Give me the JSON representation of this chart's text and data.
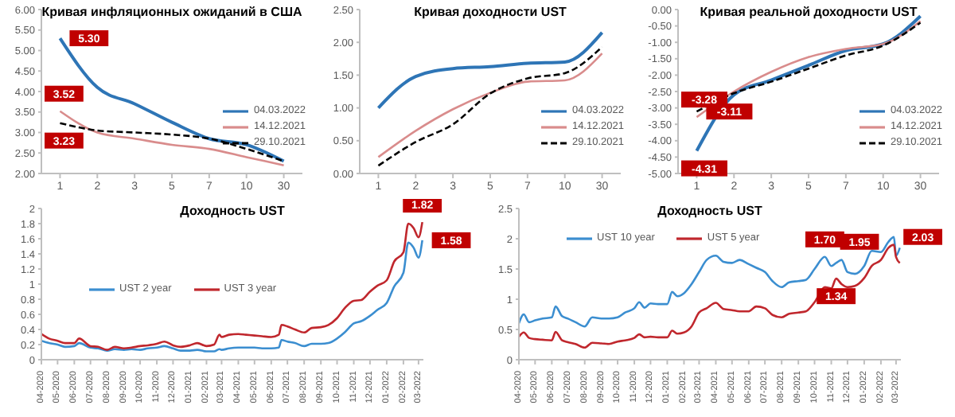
{
  "chart_data": [
    {
      "type": "line",
      "title": "Кривая инфляционных ожиданий в США",
      "categories": [
        "1",
        "2",
        "3",
        "5",
        "7",
        "10",
        "30"
      ],
      "legend": "bottom right",
      "ylim": [
        2,
        6
      ],
      "yticks": [
        {
          "value": 2,
          "label": "2.00"
        },
        {
          "value": 2.5,
          "label": "2.50"
        },
        {
          "value": 3,
          "label": "3.00"
        },
        {
          "value": 3.5,
          "label": "3.50"
        },
        {
          "value": 4,
          "label": "4.00"
        },
        {
          "value": 4.5,
          "label": "4.50"
        },
        {
          "value": 5,
          "label": "5.00"
        },
        {
          "value": 5.5,
          "label": "5.50"
        },
        {
          "value": 6,
          "label": "6.00"
        }
      ],
      "series": [
        {
          "name": "04.03.2022",
          "color": "#2e75b6",
          "values": [
            5.3,
            4.1,
            3.7,
            3.25,
            2.85,
            2.7,
            2.3
          ]
        },
        {
          "name": "14.12.2021",
          "color": "#d98c8c",
          "values": [
            3.52,
            3.0,
            2.85,
            2.7,
            2.6,
            2.4,
            2.2
          ]
        },
        {
          "name": "29.10.2021",
          "color": "#000000",
          "line_style": "dashed",
          "values": [
            3.23,
            3.05,
            3.0,
            2.95,
            2.85,
            2.6,
            2.3
          ]
        }
      ],
      "annotations": [
        {
          "text": "3.52",
          "x": "1",
          "y": 3.52
        },
        {
          "text": "5.30",
          "x": "1",
          "y": 5.3
        },
        {
          "text": "3.23",
          "x": "1",
          "y": 3.23
        }
      ]
    },
    {
      "type": "line",
      "title": "Кривая доходности UST",
      "categories": [
        "1",
        "2",
        "3",
        "5",
        "7",
        "10",
        "30"
      ],
      "legend": "bottom right",
      "ylim": [
        0,
        2.5
      ],
      "yticks": [
        {
          "value": 0,
          "label": "0.00"
        },
        {
          "value": 0.5,
          "label": "0.50"
        },
        {
          "value": 1,
          "label": "1.00"
        },
        {
          "value": 1.5,
          "label": "1.50"
        },
        {
          "value": 2,
          "label": "2.00"
        },
        {
          "value": 2.5,
          "label": "2.50"
        }
      ],
      "series": [
        {
          "name": "04.03.2022",
          "color": "#2e75b6",
          "values": [
            1.0,
            1.48,
            1.6,
            1.63,
            1.68,
            1.7,
            2.15
          ]
        },
        {
          "name": "14.12.2021",
          "color": "#d98c8c",
          "values": [
            0.25,
            0.65,
            0.98,
            1.23,
            1.4,
            1.42,
            1.83
          ]
        },
        {
          "name": "29.10.2021",
          "color": "#000000",
          "line_style": "dashed",
          "values": [
            0.12,
            0.48,
            0.75,
            1.22,
            1.45,
            1.53,
            1.93
          ]
        }
      ]
    },
    {
      "type": "line",
      "title": "Кривая реальной доходности UST",
      "categories": [
        "1",
        "2",
        "3",
        "5",
        "7",
        "10",
        "30"
      ],
      "legend": "bottom right",
      "ylim": [
        -5,
        0
      ],
      "yticks": [
        {
          "value": -5,
          "label": "-5.00"
        },
        {
          "value": -4.5,
          "label": "-4.50"
        },
        {
          "value": -4,
          "label": "-4.00"
        },
        {
          "value": -3.5,
          "label": "-3.50"
        },
        {
          "value": -3,
          "label": "-3.00"
        },
        {
          "value": -2.5,
          "label": "-2.50"
        },
        {
          "value": -2,
          "label": "-2.00"
        },
        {
          "value": -1.5,
          "label": "-1.50"
        },
        {
          "value": -1,
          "label": "-1.00"
        },
        {
          "value": -0.5,
          "label": "-0.50"
        },
        {
          "value": 0,
          "label": "0.00"
        }
      ],
      "series": [
        {
          "name": "04.03.2022",
          "color": "#2e75b6",
          "values": [
            -4.31,
            -2.6,
            -2.15,
            -1.7,
            -1.25,
            -1.05,
            -0.2
          ]
        },
        {
          "name": "14.12.2021",
          "color": "#d98c8c",
          "values": [
            -3.28,
            -2.5,
            -1.9,
            -1.45,
            -1.2,
            -1.05,
            -0.35
          ]
        },
        {
          "name": "29.10.2021",
          "color": "#000000",
          "line_style": "dashed",
          "values": [
            -3.11,
            -2.55,
            -2.2,
            -1.8,
            -1.4,
            -1.1,
            -0.4
          ]
        }
      ],
      "annotations": [
        {
          "text": "-3.28",
          "x": "1",
          "y": -3.28
        },
        {
          "text": "-3.11",
          "x": "1",
          "y": -3.11
        },
        {
          "text": "-4.31",
          "x": "1",
          "y": -4.31
        }
      ]
    },
    {
      "type": "line",
      "title": "Доходность UST",
      "legend": "left",
      "x": [
        "2020-04-01",
        "2020-04-15",
        "2020-05-01",
        "2020-05-15",
        "2020-06-01",
        "2020-06-10",
        "2020-07-01",
        "2020-07-15",
        "2020-08-01",
        "2020-08-15",
        "2020-09-01",
        "2020-09-15",
        "2020-10-01",
        "2020-10-15",
        "2020-11-01",
        "2020-11-15",
        "2020-12-01",
        "2020-12-15",
        "2021-01-01",
        "2021-01-15",
        "2021-02-01",
        "2021-02-15",
        "2021-02-25",
        "2021-03-01",
        "2021-03-15",
        "2021-04-01",
        "2021-04-15",
        "2021-05-01",
        "2021-05-15",
        "2021-06-01",
        "2021-06-15",
        "2021-06-20",
        "2021-07-01",
        "2021-07-15",
        "2021-08-01",
        "2021-08-15",
        "2021-09-01",
        "2021-09-15",
        "2021-10-01",
        "2021-10-15",
        "2021-11-01",
        "2021-11-15",
        "2021-12-01",
        "2021-12-15",
        "2022-01-01",
        "2022-01-15",
        "2022-02-01",
        "2022-02-10",
        "2022-02-20",
        "2022-03-01",
        "2022-03-08"
      ],
      "xlim": [
        "2020-04-01",
        "2022-03-10"
      ],
      "xticks": [
        {
          "value": "2020-04",
          "label": "04-2020"
        },
        {
          "value": "2020-05",
          "label": "05-2020"
        },
        {
          "value": "2020-06",
          "label": "06-2020"
        },
        {
          "value": "2020-07",
          "label": "07-2020"
        },
        {
          "value": "2020-08",
          "label": "08-2020"
        },
        {
          "value": "2020-09",
          "label": "09-2020"
        },
        {
          "value": "2020-10",
          "label": "10-2020"
        },
        {
          "value": "2020-11",
          "label": "11-2020"
        },
        {
          "value": "2020-12",
          "label": "12-2020"
        },
        {
          "value": "2021-01",
          "label": "01-2021"
        },
        {
          "value": "2021-02",
          "label": "02-2021"
        },
        {
          "value": "2021-03",
          "label": "03-2021"
        },
        {
          "value": "2021-04",
          "label": "04-2021"
        },
        {
          "value": "2021-05",
          "label": "05-2021"
        },
        {
          "value": "2021-06",
          "label": "06-2021"
        },
        {
          "value": "2021-07",
          "label": "07-2021"
        },
        {
          "value": "2021-08",
          "label": "08-2021"
        },
        {
          "value": "2021-09",
          "label": "09-2021"
        },
        {
          "value": "2021-10",
          "label": "10-2021"
        },
        {
          "value": "2021-11",
          "label": "11-2021"
        },
        {
          "value": "2021-12",
          "label": "12-2021"
        },
        {
          "value": "2022-01",
          "label": "01-2022"
        },
        {
          "value": "2022-02",
          "label": "02-2022"
        },
        {
          "value": "2022-03",
          "label": "03-2022"
        }
      ],
      "ylim": [
        0,
        2
      ],
      "yticks": [
        0,
        0.2,
        0.4,
        0.6,
        0.8,
        1,
        1.2,
        1.4,
        1.6,
        1.8,
        2
      ],
      "series": [
        {
          "name": "UST 2 year",
          "color": "#3b8ed0",
          "values": [
            0.25,
            0.22,
            0.2,
            0.17,
            0.18,
            0.22,
            0.16,
            0.15,
            0.12,
            0.14,
            0.13,
            0.14,
            0.13,
            0.15,
            0.16,
            0.18,
            0.15,
            0.12,
            0.12,
            0.13,
            0.11,
            0.11,
            0.14,
            0.13,
            0.15,
            0.16,
            0.16,
            0.16,
            0.15,
            0.15,
            0.16,
            0.26,
            0.24,
            0.22,
            0.18,
            0.21,
            0.21,
            0.22,
            0.28,
            0.36,
            0.48,
            0.51,
            0.58,
            0.66,
            0.75,
            0.97,
            1.15,
            1.55,
            1.48,
            1.35,
            1.58
          ]
        },
        {
          "name": "UST 3 year",
          "color": "#c0272d",
          "values": [
            0.34,
            0.28,
            0.25,
            0.22,
            0.22,
            0.28,
            0.18,
            0.17,
            0.13,
            0.17,
            0.15,
            0.16,
            0.18,
            0.19,
            0.21,
            0.24,
            0.19,
            0.17,
            0.19,
            0.22,
            0.18,
            0.2,
            0.33,
            0.3,
            0.33,
            0.34,
            0.33,
            0.32,
            0.31,
            0.3,
            0.33,
            0.46,
            0.44,
            0.4,
            0.36,
            0.42,
            0.43,
            0.46,
            0.55,
            0.68,
            0.78,
            0.79,
            0.9,
            0.98,
            1.05,
            1.3,
            1.42,
            1.8,
            1.74,
            1.62,
            1.82
          ]
        }
      ],
      "annotations": [
        {
          "text": "1.82",
          "x": "2022-03-08",
          "y": 1.82
        },
        {
          "text": "1.58",
          "x": "2022-03-08",
          "y": 1.58
        }
      ]
    },
    {
      "type": "line",
      "title": "Доходность UST",
      "legend": "top left",
      "x": [
        "2020-04-01",
        "2020-04-10",
        "2020-04-20",
        "2020-05-01",
        "2020-05-15",
        "2020-06-01",
        "2020-06-08",
        "2020-06-20",
        "2020-07-01",
        "2020-07-15",
        "2020-08-01",
        "2020-08-15",
        "2020-09-01",
        "2020-09-15",
        "2020-10-01",
        "2020-10-15",
        "2020-11-01",
        "2020-11-10",
        "2020-11-20",
        "2020-12-01",
        "2020-12-15",
        "2021-01-01",
        "2021-01-10",
        "2021-01-20",
        "2021-02-01",
        "2021-02-15",
        "2021-03-01",
        "2021-03-15",
        "2021-04-01",
        "2021-04-15",
        "2021-05-01",
        "2021-05-15",
        "2021-06-01",
        "2021-06-15",
        "2021-07-01",
        "2021-07-15",
        "2021-08-01",
        "2021-08-15",
        "2021-09-01",
        "2021-09-15",
        "2021-10-01",
        "2021-10-20",
        "2021-11-01",
        "2021-11-10",
        "2021-11-20",
        "2021-12-01",
        "2021-12-15",
        "2022-01-01",
        "2022-01-15",
        "2022-02-01",
        "2022-02-15",
        "2022-02-25",
        "2022-03-01",
        "2022-03-08"
      ],
      "xlim": [
        "2020-04-01",
        "2022-03-10"
      ],
      "xticks": [
        {
          "value": "2020-04",
          "label": "04-2020"
        },
        {
          "value": "2020-05",
          "label": "05-2020"
        },
        {
          "value": "2020-06",
          "label": "06-2020"
        },
        {
          "value": "2020-07",
          "label": "07-2020"
        },
        {
          "value": "2020-08",
          "label": "08-2020"
        },
        {
          "value": "2020-09",
          "label": "09-2020"
        },
        {
          "value": "2020-10",
          "label": "10-2020"
        },
        {
          "value": "2020-11",
          "label": "11-2020"
        },
        {
          "value": "2020-12",
          "label": "12-2020"
        },
        {
          "value": "2021-01",
          "label": "01-2021"
        },
        {
          "value": "2021-02",
          "label": "02-2021"
        },
        {
          "value": "2021-03",
          "label": "03-2021"
        },
        {
          "value": "2021-04",
          "label": "04-2021"
        },
        {
          "value": "2021-05",
          "label": "05-2021"
        },
        {
          "value": "2021-06",
          "label": "06-2021"
        },
        {
          "value": "2021-07",
          "label": "07-2021"
        },
        {
          "value": "2021-08",
          "label": "08-2021"
        },
        {
          "value": "2021-09",
          "label": "09-2021"
        },
        {
          "value": "2021-10",
          "label": "10-2021"
        },
        {
          "value": "2021-11",
          "label": "11-2021"
        },
        {
          "value": "2021-12",
          "label": "12-2021"
        },
        {
          "value": "2022-01",
          "label": "01-2022"
        },
        {
          "value": "2022-02",
          "label": "02-2022"
        },
        {
          "value": "2022-03",
          "label": "03-2022"
        }
      ],
      "ylim": [
        0,
        2.5
      ],
      "yticks": [
        0,
        0.5,
        1,
        1.5,
        2,
        2.5
      ],
      "series": [
        {
          "name": "UST 10 year",
          "color": "#3b8ed0",
          "values": [
            0.6,
            0.75,
            0.62,
            0.65,
            0.68,
            0.7,
            0.88,
            0.72,
            0.68,
            0.62,
            0.55,
            0.7,
            0.68,
            0.68,
            0.7,
            0.78,
            0.85,
            0.95,
            0.86,
            0.93,
            0.92,
            0.92,
            1.12,
            1.05,
            1.1,
            1.25,
            1.45,
            1.65,
            1.72,
            1.62,
            1.6,
            1.65,
            1.58,
            1.52,
            1.45,
            1.3,
            1.2,
            1.28,
            1.3,
            1.32,
            1.5,
            1.7,
            1.55,
            1.6,
            1.65,
            1.45,
            1.42,
            1.55,
            1.8,
            1.78,
            1.95,
            2.03,
            1.72,
            1.85
          ]
        },
        {
          "name": "UST 5 year",
          "color": "#c0272d",
          "values": [
            0.38,
            0.45,
            0.36,
            0.34,
            0.33,
            0.32,
            0.46,
            0.32,
            0.29,
            0.26,
            0.2,
            0.28,
            0.27,
            0.26,
            0.3,
            0.32,
            0.36,
            0.42,
            0.37,
            0.38,
            0.37,
            0.37,
            0.48,
            0.43,
            0.45,
            0.55,
            0.78,
            0.85,
            0.94,
            0.84,
            0.82,
            0.8,
            0.8,
            0.88,
            0.85,
            0.74,
            0.7,
            0.76,
            0.78,
            0.8,
            0.95,
            1.2,
            1.18,
            1.34,
            1.25,
            1.2,
            1.22,
            1.35,
            1.55,
            1.65,
            1.85,
            1.9,
            1.7,
            1.6
          ]
        }
      ],
      "annotations": [
        {
          "text": "1.70",
          "x": "2021-10-20",
          "y": 1.7
        },
        {
          "text": "2.03",
          "x": "2022-02-25",
          "y": 2.03
        },
        {
          "text": "1.34",
          "x": "2021-11-10",
          "y": 1.34
        },
        {
          "text": "1.95",
          "x": "2022-02-15",
          "y": 1.95
        }
      ]
    }
  ]
}
